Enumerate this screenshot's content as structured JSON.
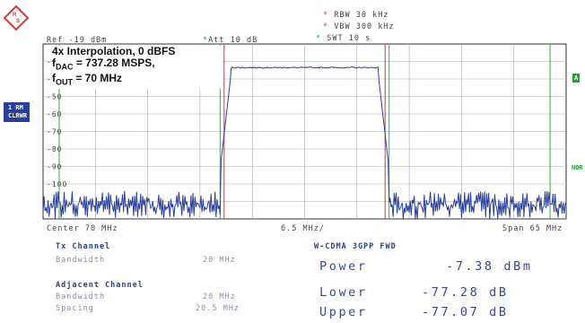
{
  "header": {
    "ref": "Ref -19 dBm",
    "att": "Att  10 dB",
    "rbw": "RBW 30 kHz",
    "vbw": "VBW 300 kHz",
    "swt": "SWT 10 s"
  },
  "side": {
    "trace_label": "1 RM",
    "trace_mode": "CLRWR",
    "right_tag": "A",
    "right_tag2": "NOR"
  },
  "annotation": {
    "line1": "4x Interpolation, 0 dBFS",
    "line2_main": "f",
    "line2_sub": "DAC",
    "line2_rest": " = 737.28 MSPS,",
    "line3_main": "f",
    "line3_sub": "OUT",
    "line3_rest": " = 70 MHz"
  },
  "footer": {
    "center": "Center 70 MHz",
    "div": "6.5 MHz/",
    "span": "Span 65 MHz"
  },
  "chart_data": {
    "type": "line",
    "y_tick_labels": [
      "-30",
      "-40",
      "-50",
      "-60",
      "-70",
      "-80",
      "-90",
      "-100"
    ],
    "ylim": [
      -120,
      -20
    ],
    "xlim": [
      37.5,
      102.5
    ],
    "channel_center": 70,
    "channel_bw": 20,
    "adjacent_spacing": 20.5,
    "levels": {
      "in_band": -33.5,
      "noise_floor": -108
    },
    "grid": true
  },
  "measurements": {
    "tx_channel_title": "Tx Channel",
    "bandwidth_label": "Bandwidth",
    "tx_bandwidth": "20 MHz",
    "adjacent_title": "Adjacent Channel",
    "adj_bandwidth_label": "Bandwidth",
    "adj_bandwidth": "20 MHz",
    "spacing_label": "Spacing",
    "spacing": "20.5 MHz",
    "standard": "W-CDMA 3GPP FWD",
    "power_label": "Power",
    "power_value": "-7.38 dBm",
    "lower_label": "Lower",
    "lower_value": "-77.28 dB",
    "upper_label": "Upper",
    "upper_value": "-77.07 dB"
  },
  "colors": {
    "trace": "#2a3f9a",
    "grid": "#a9a9a9",
    "channel_line": "#d43a3a",
    "adjacent_line": "#3aa83a",
    "text_blue": "#2b3f8c"
  }
}
